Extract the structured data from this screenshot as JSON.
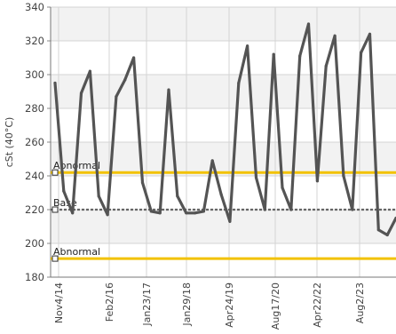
{
  "chart_data": {
    "type": "line",
    "title": "",
    "ylabel": "cSt (40°C)",
    "xlabel": "",
    "ylim": [
      180,
      340
    ],
    "yticks": [
      180,
      200,
      220,
      240,
      260,
      280,
      300,
      320,
      340
    ],
    "xtick_labels": [
      "Nov4/14",
      "Feb2/16",
      "Jan23/17",
      "Jan29/18",
      "Apr24/19",
      "Aug17/20",
      "Apr22/22",
      "Aug2/23"
    ],
    "grid": true,
    "colors": {
      "series": "#545454",
      "abnormal": "#f2c200",
      "base": "#666666",
      "grid": "#d4d4d4",
      "band_shade": "#f2f2f2"
    },
    "reference_lines": [
      {
        "label": "Abnormal",
        "value": 242,
        "style": "solid",
        "color": "#f2c200"
      },
      {
        "label": "Base",
        "value": 220,
        "style": "dashed",
        "color": "#666666"
      },
      {
        "label": "Abnormal",
        "value": 191,
        "style": "solid",
        "color": "#f2c200"
      }
    ],
    "series": [
      {
        "values": [
          295,
          231,
          218,
          289,
          302,
          228,
          217,
          287,
          297,
          310,
          236,
          219,
          218,
          291,
          228,
          218,
          218,
          219,
          249,
          229,
          213,
          295,
          317,
          239,
          220,
          312,
          233,
          220,
          311,
          330,
          237,
          305,
          323,
          240,
          220,
          313,
          324,
          208,
          205,
          215
        ]
      }
    ]
  }
}
